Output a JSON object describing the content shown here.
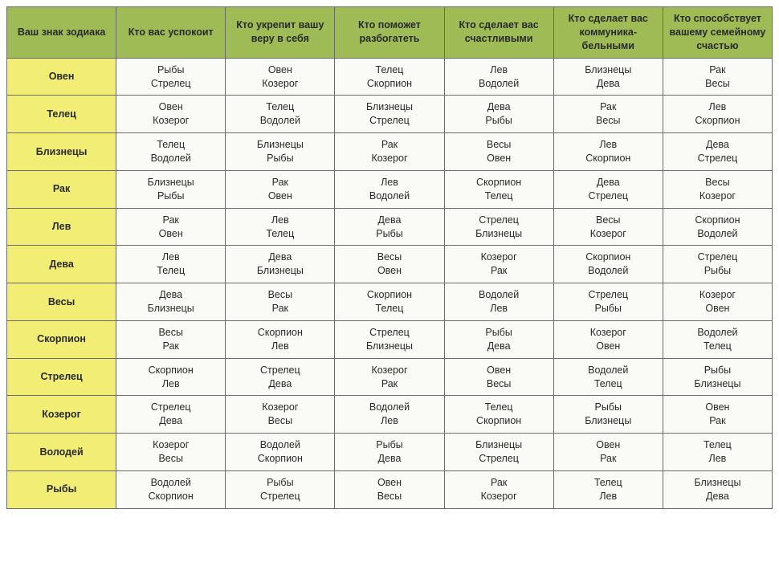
{
  "colors": {
    "header_bg": "#9ebb56",
    "header_text": "#2a2a2a",
    "sign_bg": "#f2ed74",
    "cell_bg": "#fafaf6",
    "border": "#6b6b6b"
  },
  "columns": [
    "Ваш знак зодиака",
    "Кто вас успокоит",
    "Кто укрепит вашу веру в себя",
    "Кто поможет разбогатеть",
    "Кто сделает вас счастливыми",
    "Кто сделает вас коммуника-бельными",
    "Кто способствует вашему семейному счастью"
  ],
  "rows": [
    {
      "sign": "Овен",
      "cells": [
        [
          "Рыбы",
          "Стрелец"
        ],
        [
          "Овен",
          "Козерог"
        ],
        [
          "Телец",
          "Скорпион"
        ],
        [
          "Лев",
          "Водолей"
        ],
        [
          "Близнецы",
          "Дева"
        ],
        [
          "Рак",
          "Весы"
        ]
      ]
    },
    {
      "sign": "Телец",
      "cells": [
        [
          "Овен",
          "Козерог"
        ],
        [
          "Телец",
          "Водолей"
        ],
        [
          "Близнецы",
          "Стрелец"
        ],
        [
          "Дева",
          "Рыбы"
        ],
        [
          "Рак",
          "Весы"
        ],
        [
          "Лев",
          "Скорпион"
        ]
      ]
    },
    {
      "sign": "Близнецы",
      "cells": [
        [
          "Телец",
          "Водолей"
        ],
        [
          "Близнецы",
          "Рыбы"
        ],
        [
          "Рак",
          "Козерог"
        ],
        [
          "Весы",
          "Овен"
        ],
        [
          "Лев",
          "Скорпион"
        ],
        [
          "Дева",
          "Стрелец"
        ]
      ]
    },
    {
      "sign": "Рак",
      "cells": [
        [
          "Близнецы",
          "Рыбы"
        ],
        [
          "Рак",
          "Овен"
        ],
        [
          "Лев",
          "Водолей"
        ],
        [
          "Скорпион",
          "Телец"
        ],
        [
          "Дева",
          "Стрелец"
        ],
        [
          "Весы",
          "Козерог"
        ]
      ]
    },
    {
      "sign": "Лев",
      "cells": [
        [
          "Рак",
          "Овен"
        ],
        [
          "Лев",
          "Телец"
        ],
        [
          "Дева",
          "Рыбы"
        ],
        [
          "Стрелец",
          "Близнецы"
        ],
        [
          "Весы",
          "Козерог"
        ],
        [
          "Скорпион",
          "Водолей"
        ]
      ]
    },
    {
      "sign": "Дева",
      "cells": [
        [
          "Лев",
          "Телец"
        ],
        [
          "Дева",
          "Близнецы"
        ],
        [
          "Весы",
          "Овен"
        ],
        [
          "Козерог",
          "Рак"
        ],
        [
          "Скорпион",
          "Водолей"
        ],
        [
          "Стрелец",
          "Рыбы"
        ]
      ]
    },
    {
      "sign": "Весы",
      "cells": [
        [
          "Дева",
          "Близнецы"
        ],
        [
          "Весы",
          "Рак"
        ],
        [
          "Скорпион",
          "Телец"
        ],
        [
          "Водолей",
          "Лев"
        ],
        [
          "Стрелец",
          "Рыбы"
        ],
        [
          "Козерог",
          "Овен"
        ]
      ]
    },
    {
      "sign": "Скорпион",
      "cells": [
        [
          "Весы",
          "Рак"
        ],
        [
          "Скорпион",
          "Лев"
        ],
        [
          "Стрелец",
          "Близнецы"
        ],
        [
          "Рыбы",
          "Дева"
        ],
        [
          "Козерог",
          "Овен"
        ],
        [
          "Водолей",
          "Телец"
        ]
      ]
    },
    {
      "sign": "Стрелец",
      "cells": [
        [
          "Скорпион",
          "Лев"
        ],
        [
          "Стрелец",
          "Дева"
        ],
        [
          "Козерог",
          "Рак"
        ],
        [
          "Овен",
          "Весы"
        ],
        [
          "Водолей",
          "Телец"
        ],
        [
          "Рыбы",
          "Близнецы"
        ]
      ]
    },
    {
      "sign": "Козерог",
      "cells": [
        [
          "Стрелец",
          "Дева"
        ],
        [
          "Козерог",
          "Весы"
        ],
        [
          "Водолей",
          "Лев"
        ],
        [
          "Телец",
          "Скорпион"
        ],
        [
          "Рыбы",
          "Близнецы"
        ],
        [
          "Овен",
          "Рак"
        ]
      ]
    },
    {
      "sign": "Володей",
      "cells": [
        [
          "Козерог",
          "Весы"
        ],
        [
          "Водолей",
          "Скорпион"
        ],
        [
          "Рыбы",
          "Дева"
        ],
        [
          "Близнецы",
          "Стрелец"
        ],
        [
          "Овен",
          "Рак"
        ],
        [
          "Телец",
          "Лев"
        ]
      ]
    },
    {
      "sign": "Рыбы",
      "cells": [
        [
          "Водолей",
          "Скорпион"
        ],
        [
          "Рыбы",
          "Стрелец"
        ],
        [
          "Овен",
          "Весы"
        ],
        [
          "Рак",
          "Козерог"
        ],
        [
          "Телец",
          "Лев"
        ],
        [
          "Близнецы",
          "Дева"
        ]
      ]
    }
  ]
}
